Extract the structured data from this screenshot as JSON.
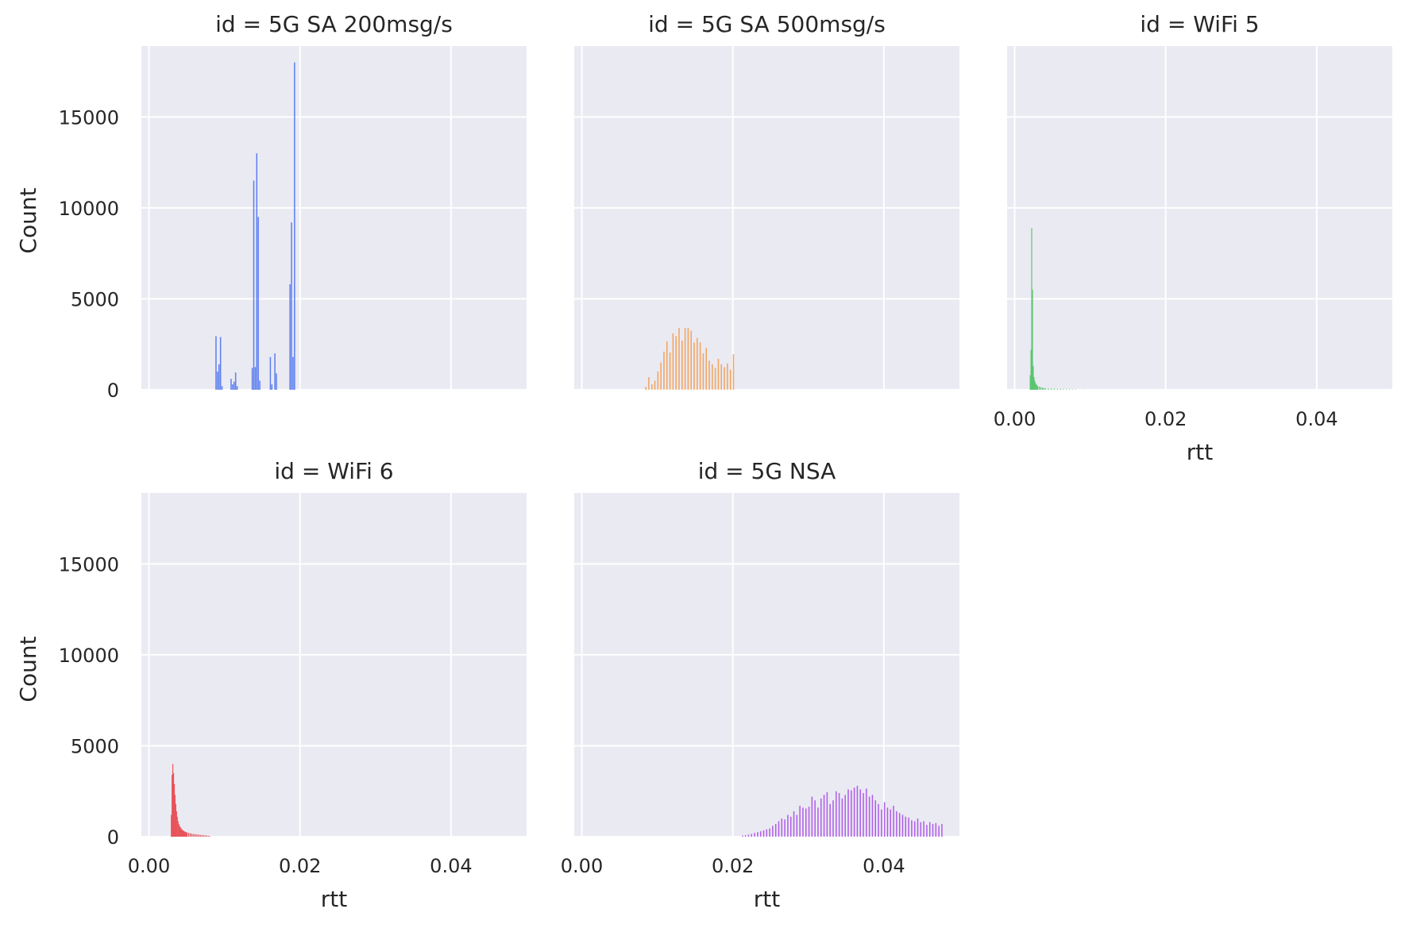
{
  "chart_data": {
    "type": "bar",
    "kind": "faceted-histogram",
    "x_label": "rtt",
    "y_label": "Count",
    "xlim": [
      -0.001,
      0.05
    ],
    "ylim": [
      0,
      18900
    ],
    "x_ticks": [
      "0.00",
      "0.02",
      "0.04"
    ],
    "x_tick_values": [
      0,
      0.02,
      0.04
    ],
    "y_ticks": [
      "0",
      "5000",
      "10000",
      "15000"
    ],
    "y_tick_values": [
      0,
      5000,
      10000,
      15000
    ],
    "grid": true,
    "background_color": "#eaeaf2",
    "facets": [
      {
        "title": "id = 5G SA 200msg/s",
        "color": "#4c72f0",
        "bin_width": 0.0002,
        "bins": [
          [
            0.0088,
            2950
          ],
          [
            0.009,
            1000
          ],
          [
            0.0092,
            1400
          ],
          [
            0.0094,
            2900
          ],
          [
            0.0096,
            200
          ],
          [
            0.0108,
            600
          ],
          [
            0.011,
            300
          ],
          [
            0.0112,
            450
          ],
          [
            0.0114,
            950
          ],
          [
            0.0116,
            200
          ],
          [
            0.0136,
            1200
          ],
          [
            0.0138,
            11500
          ],
          [
            0.014,
            1250
          ],
          [
            0.0142,
            13000
          ],
          [
            0.0144,
            9500
          ],
          [
            0.0146,
            500
          ],
          [
            0.016,
            1800
          ],
          [
            0.0162,
            300
          ],
          [
            0.0166,
            2000
          ],
          [
            0.0168,
            900
          ],
          [
            0.0186,
            5800
          ],
          [
            0.0188,
            9200
          ],
          [
            0.019,
            1800
          ],
          [
            0.0192,
            18000
          ]
        ]
      },
      {
        "title": "id = 5G SA 500msg/s",
        "color": "#f59a4a",
        "bin_width": 0.0002,
        "bins": [
          [
            0.0084,
            150
          ],
          [
            0.0088,
            700
          ],
          [
            0.0092,
            300
          ],
          [
            0.0096,
            500
          ],
          [
            0.01,
            1000
          ],
          [
            0.0104,
            1500
          ],
          [
            0.0108,
            2100
          ],
          [
            0.0112,
            2650
          ],
          [
            0.0116,
            2050
          ],
          [
            0.012,
            3100
          ],
          [
            0.0124,
            2950
          ],
          [
            0.0128,
            3400
          ],
          [
            0.0132,
            2700
          ],
          [
            0.0136,
            3400
          ],
          [
            0.014,
            3400
          ],
          [
            0.0144,
            3250
          ],
          [
            0.0148,
            2600
          ],
          [
            0.0152,
            2850
          ],
          [
            0.0156,
            2600
          ],
          [
            0.016,
            2000
          ],
          [
            0.0164,
            2300
          ],
          [
            0.0168,
            1600
          ],
          [
            0.0172,
            1400
          ],
          [
            0.0176,
            1200
          ],
          [
            0.018,
            1700
          ],
          [
            0.0184,
            1400
          ],
          [
            0.0188,
            1250
          ],
          [
            0.0192,
            1450
          ],
          [
            0.0196,
            1100
          ],
          [
            0.02,
            1950
          ]
        ]
      },
      {
        "title": "id = WiFi 5",
        "color": "#4fc266",
        "bin_width": 0.0001,
        "bins": [
          [
            0.002,
            800
          ],
          [
            0.0021,
            2200
          ],
          [
            0.0022,
            8900
          ],
          [
            0.0023,
            5500
          ],
          [
            0.0024,
            1300
          ],
          [
            0.0025,
            700
          ],
          [
            0.0026,
            500
          ],
          [
            0.0027,
            380
          ],
          [
            0.0028,
            300
          ],
          [
            0.0029,
            240
          ],
          [
            0.003,
            200
          ],
          [
            0.0032,
            170
          ],
          [
            0.0034,
            140
          ],
          [
            0.0036,
            120
          ],
          [
            0.0038,
            100
          ],
          [
            0.004,
            90
          ],
          [
            0.0044,
            80
          ],
          [
            0.0048,
            70
          ],
          [
            0.0052,
            60
          ],
          [
            0.0056,
            50
          ],
          [
            0.006,
            45
          ],
          [
            0.0064,
            40
          ],
          [
            0.0068,
            35
          ],
          [
            0.0072,
            30
          ],
          [
            0.0076,
            25
          ],
          [
            0.008,
            20
          ],
          [
            0.009,
            10
          ]
        ]
      },
      {
        "title": "id = WiFi 6",
        "color": "#e8474f",
        "bin_width": 0.0001,
        "bins": [
          [
            0.0029,
            1200
          ],
          [
            0.003,
            3400
          ],
          [
            0.0031,
            4000
          ],
          [
            0.0032,
            3500
          ],
          [
            0.0033,
            2900
          ],
          [
            0.0034,
            2300
          ],
          [
            0.0035,
            1800
          ],
          [
            0.0036,
            1400
          ],
          [
            0.0037,
            1100
          ],
          [
            0.0038,
            850
          ],
          [
            0.0039,
            700
          ],
          [
            0.004,
            600
          ],
          [
            0.0041,
            520
          ],
          [
            0.0042,
            460
          ],
          [
            0.0043,
            400
          ],
          [
            0.0044,
            360
          ],
          [
            0.0045,
            330
          ],
          [
            0.0046,
            300
          ],
          [
            0.0047,
            280
          ],
          [
            0.0048,
            260
          ],
          [
            0.0049,
            240
          ],
          [
            0.005,
            230
          ],
          [
            0.0052,
            210
          ],
          [
            0.0054,
            190
          ],
          [
            0.0056,
            170
          ],
          [
            0.0058,
            150
          ],
          [
            0.006,
            140
          ],
          [
            0.0062,
            130
          ],
          [
            0.0064,
            120
          ],
          [
            0.0066,
            110
          ],
          [
            0.0068,
            100
          ],
          [
            0.007,
            90
          ],
          [
            0.0072,
            80
          ],
          [
            0.0074,
            70
          ],
          [
            0.0076,
            60
          ],
          [
            0.0078,
            50
          ],
          [
            0.008,
            40
          ]
        ]
      },
      {
        "title": "id = 5G NSA",
        "color": "#a84de8",
        "bin_width": 0.0002,
        "bins": [
          [
            0.0212,
            60
          ],
          [
            0.0216,
            80
          ],
          [
            0.022,
            110
          ],
          [
            0.0224,
            150
          ],
          [
            0.0228,
            210
          ],
          [
            0.0232,
            250
          ],
          [
            0.0236,
            300
          ],
          [
            0.024,
            350
          ],
          [
            0.0244,
            400
          ],
          [
            0.0248,
            450
          ],
          [
            0.0252,
            600
          ],
          [
            0.0256,
            700
          ],
          [
            0.026,
            850
          ],
          [
            0.0264,
            1000
          ],
          [
            0.0268,
            950
          ],
          [
            0.0272,
            1200
          ],
          [
            0.0276,
            1100
          ],
          [
            0.028,
            1400
          ],
          [
            0.0284,
            1200
          ],
          [
            0.0288,
            1700
          ],
          [
            0.0292,
            1600
          ],
          [
            0.0296,
            1550
          ],
          [
            0.03,
            1650
          ],
          [
            0.0304,
            2200
          ],
          [
            0.0308,
            2000
          ],
          [
            0.0312,
            1600
          ],
          [
            0.0316,
            2100
          ],
          [
            0.032,
            2300
          ],
          [
            0.0324,
            2450
          ],
          [
            0.0328,
            1800
          ],
          [
            0.0332,
            2000
          ],
          [
            0.0336,
            2500
          ],
          [
            0.034,
            2400
          ],
          [
            0.0344,
            2100
          ],
          [
            0.0348,
            2300
          ],
          [
            0.0352,
            2600
          ],
          [
            0.0356,
            2550
          ],
          [
            0.036,
            2700
          ],
          [
            0.0364,
            2800
          ],
          [
            0.0368,
            2600
          ],
          [
            0.0372,
            2400
          ],
          [
            0.0376,
            2650
          ],
          [
            0.038,
            2200
          ],
          [
            0.0384,
            2300
          ],
          [
            0.0388,
            2000
          ],
          [
            0.0392,
            1800
          ],
          [
            0.0396,
            1500
          ],
          [
            0.04,
            1900
          ],
          [
            0.0404,
            1600
          ],
          [
            0.0408,
            1500
          ],
          [
            0.0412,
            1700
          ],
          [
            0.0416,
            1400
          ],
          [
            0.042,
            1300
          ],
          [
            0.0424,
            1200
          ],
          [
            0.0428,
            1100
          ],
          [
            0.0432,
            1050
          ],
          [
            0.0436,
            900
          ],
          [
            0.044,
            850
          ],
          [
            0.0444,
            1000
          ],
          [
            0.0448,
            800
          ],
          [
            0.0452,
            850
          ],
          [
            0.0456,
            650
          ],
          [
            0.046,
            800
          ],
          [
            0.0464,
            700
          ],
          [
            0.0468,
            750
          ],
          [
            0.0472,
            600
          ],
          [
            0.0476,
            700
          ]
        ]
      }
    ]
  }
}
